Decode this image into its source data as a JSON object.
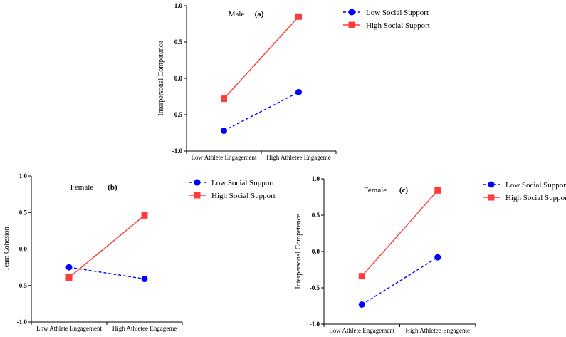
{
  "chart_data": [
    {
      "type": "line",
      "title": "Male",
      "tag": "(a)",
      "ylabel": "Interpersonal Competence",
      "xlabel": "",
      "categories": [
        "Low Athlete Engagement",
        "High Athletee Engageme"
      ],
      "ylim": [
        -1.0,
        1.0
      ],
      "yticks": [
        "1.0",
        "0.5",
        "0.0",
        "-0.5",
        "-1.0"
      ],
      "series": [
        {
          "name": "Low Social Support",
          "values": [
            -0.72,
            -0.19
          ],
          "color": "#0000ff",
          "marker": "circle",
          "dash": "dashed"
        },
        {
          "name": "High Social Support",
          "values": [
            -0.28,
            0.85
          ],
          "color": "#ff3b3b",
          "marker": "square",
          "dash": "solid"
        }
      ]
    },
    {
      "type": "line",
      "title": "Female",
      "tag": "(b)",
      "ylabel": "Team Cohesion",
      "xlabel": "",
      "categories": [
        "Low Athlete Engagement",
        "High Athletee Engageme"
      ],
      "ylim": [
        -1.0,
        1.0
      ],
      "yticks": [
        "1.0",
        "0.5",
        "0.0",
        "-0.5",
        "-1.0"
      ],
      "series": [
        {
          "name": "Low Social Support",
          "values": [
            -0.25,
            -0.41
          ],
          "color": "#0000ff",
          "marker": "circle",
          "dash": "dashed"
        },
        {
          "name": "High Social Support",
          "values": [
            -0.39,
            0.46
          ],
          "color": "#ff3b3b",
          "marker": "square",
          "dash": "solid"
        }
      ]
    },
    {
      "type": "line",
      "title": "Female",
      "tag": "(c)",
      "ylabel": "Interpersonal Competence",
      "xlabel": "",
      "categories": [
        "Low Athlete Engagement",
        "High Athletee Engageme"
      ],
      "ylim": [
        -1.0,
        1.0
      ],
      "yticks": [
        "1.0",
        "0.5",
        "0.0",
        "-0.5",
        "-1.0"
      ],
      "series": [
        {
          "name": "Low Social Support",
          "values": [
            -0.73,
            -0.08
          ],
          "color": "#0000ff",
          "marker": "circle",
          "dash": "dashed"
        },
        {
          "name": "High Social Support",
          "values": [
            -0.34,
            0.84
          ],
          "color": "#ff3b3b",
          "marker": "square",
          "dash": "solid"
        }
      ]
    }
  ]
}
